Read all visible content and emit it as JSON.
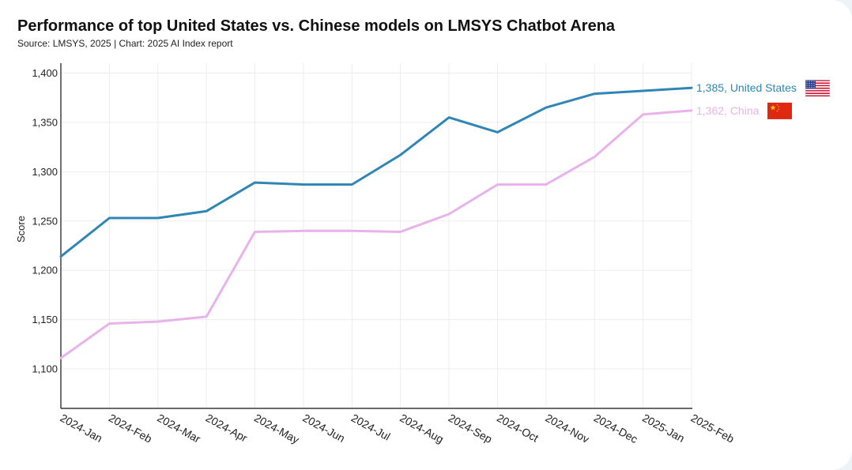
{
  "chart_data": {
    "type": "line",
    "title": "Performance of top United States vs. Chinese models on LMSYS Chatbot Arena",
    "subtitle": "Source: LMSYS, 2025 | Chart: 2025 AI Index report",
    "xlabel": "",
    "ylabel": "Score",
    "ylim": [
      1060,
      1410
    ],
    "yticks": [
      1100,
      1150,
      1200,
      1250,
      1300,
      1350,
      1400
    ],
    "ytick_labels": [
      "1,100",
      "1,150",
      "1,200",
      "1,250",
      "1,300",
      "1,350",
      "1,400"
    ],
    "categories": [
      "2024-Jan",
      "2024-Feb",
      "2024-Mar",
      "2024-Apr",
      "2024-May",
      "2024-Jun",
      "2024-Jul",
      "2024-Aug",
      "2024-Sep",
      "2024-Oct",
      "2024-Nov",
      "2024-Dec",
      "2025-Jan",
      "2025-Feb"
    ],
    "grid": true,
    "series": [
      {
        "name": "United States",
        "color": "#2f86b4",
        "values": [
          1214,
          1253,
          1253,
          1260,
          1289,
          1287,
          1287,
          1317,
          1355,
          1340,
          1365,
          1379,
          1382,
          1385
        ],
        "end_label": "1,385, United States",
        "flag_icon": "us-flag-icon"
      },
      {
        "name": "China",
        "color": "#e8b2ea",
        "values": [
          1111,
          1146,
          1148,
          1153,
          1239,
          1240,
          1240,
          1239,
          1257,
          1287,
          1287,
          1315,
          1358,
          1362
        ],
        "end_label": "1,362, China",
        "flag_icon": "china-flag-icon"
      }
    ]
  }
}
